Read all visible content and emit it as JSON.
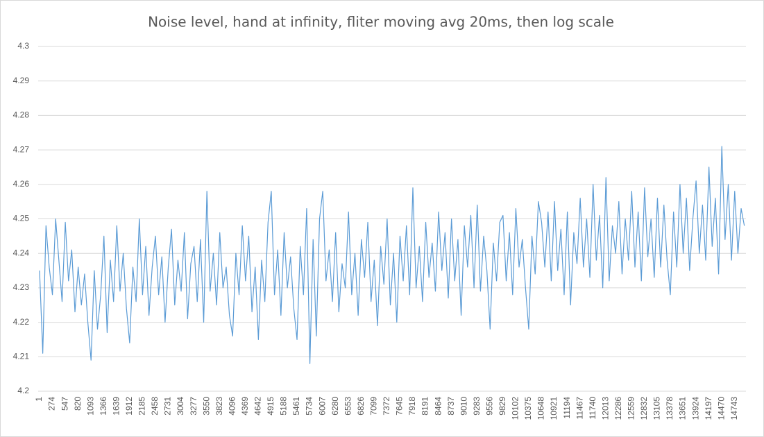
{
  "chart_data": {
    "type": "line",
    "title": "Noise level, hand at infinity, fliter moving avg 20ms, then log scale",
    "categories": [
      "1",
      null,
      null,
      null,
      "274",
      null,
      null,
      null,
      "547",
      null,
      null,
      null,
      "820",
      null,
      null,
      null,
      "1093",
      null,
      null,
      null,
      "1366",
      null,
      null,
      null,
      "1639",
      null,
      null,
      null,
      "1912",
      null,
      null,
      null,
      "2185",
      null,
      null,
      null,
      "2458",
      null,
      null,
      null,
      "2731",
      null,
      null,
      null,
      "3004",
      null,
      null,
      null,
      "3277",
      null,
      null,
      null,
      "3550",
      null,
      null,
      null,
      "3823",
      null,
      null,
      null,
      "4096",
      null,
      null,
      null,
      "4369",
      null,
      null,
      null,
      "4642",
      null,
      null,
      null,
      "4915",
      null,
      null,
      null,
      "5188",
      null,
      null,
      null,
      "5461",
      null,
      null,
      null,
      "5734",
      null,
      null,
      null,
      "6007",
      null,
      null,
      null,
      "6280",
      null,
      null,
      null,
      "6553",
      null,
      null,
      null,
      "6826",
      null,
      null,
      null,
      "7099",
      null,
      null,
      null,
      "7372",
      null,
      null,
      null,
      "7645",
      null,
      null,
      null,
      "7918",
      null,
      null,
      null,
      "8191",
      null,
      null,
      null,
      "8464",
      null,
      null,
      null,
      "8737",
      null,
      null,
      null,
      "9010",
      null,
      null,
      null,
      "9283",
      null,
      null,
      null,
      "9556",
      null,
      null,
      null,
      "9829",
      null,
      null,
      null,
      "10102",
      null,
      null,
      null,
      "10375",
      null,
      null,
      null,
      "10648",
      null,
      null,
      null,
      "10921",
      null,
      null,
      null,
      "11194",
      null,
      null,
      null,
      "11467",
      null,
      null,
      null,
      "11740",
      null,
      null,
      null,
      "12013",
      null,
      null,
      null,
      "12286",
      null,
      null,
      null,
      "12559",
      null,
      null,
      null,
      "12832",
      null,
      null,
      null,
      "13105",
      null,
      null,
      null,
      "13378",
      null,
      null,
      null,
      "13651",
      null,
      null,
      null,
      "13924",
      null,
      null,
      null,
      "14197",
      null,
      null,
      null,
      "14470",
      null,
      null,
      null,
      "14743",
      null,
      null,
      null
    ],
    "values": [
      4.235,
      4.211,
      4.248,
      4.236,
      4.228,
      4.25,
      4.238,
      4.226,
      4.249,
      4.232,
      4.241,
      4.223,
      4.236,
      4.225,
      4.234,
      4.22,
      4.209,
      4.235,
      4.218,
      4.228,
      4.245,
      4.217,
      4.238,
      4.226,
      4.248,
      4.229,
      4.24,
      4.224,
      4.214,
      4.236,
      4.226,
      4.25,
      4.228,
      4.242,
      4.222,
      4.236,
      4.245,
      4.228,
      4.239,
      4.22,
      4.236,
      4.247,
      4.225,
      4.238,
      4.229,
      4.246,
      4.221,
      4.237,
      4.242,
      4.226,
      4.244,
      4.22,
      4.258,
      4.229,
      4.24,
      4.225,
      4.246,
      4.23,
      4.236,
      4.222,
      4.216,
      4.24,
      4.228,
      4.248,
      4.232,
      4.245,
      4.223,
      4.236,
      4.215,
      4.238,
      4.226,
      4.249,
      4.258,
      4.228,
      4.241,
      4.222,
      4.246,
      4.23,
      4.239,
      4.224,
      4.215,
      4.242,
      4.228,
      4.253,
      4.208,
      4.244,
      4.216,
      4.25,
      4.258,
      4.232,
      4.241,
      4.226,
      4.246,
      4.223,
      4.237,
      4.23,
      4.252,
      4.228,
      4.24,
      4.222,
      4.244,
      4.233,
      4.249,
      4.226,
      4.238,
      4.219,
      4.242,
      4.231,
      4.25,
      4.225,
      4.24,
      4.22,
      4.245,
      4.232,
      4.248,
      4.228,
      4.259,
      4.23,
      4.242,
      4.226,
      4.249,
      4.233,
      4.243,
      4.229,
      4.252,
      4.235,
      4.246,
      4.227,
      4.25,
      4.232,
      4.244,
      4.222,
      4.248,
      4.236,
      4.251,
      4.23,
      4.254,
      4.229,
      4.245,
      4.235,
      4.218,
      4.243,
      4.232,
      4.249,
      4.251,
      4.232,
      4.246,
      4.228,
      4.253,
      4.236,
      4.244,
      4.23,
      4.218,
      4.245,
      4.234,
      4.255,
      4.249,
      4.236,
      4.252,
      4.232,
      4.255,
      4.235,
      4.247,
      4.228,
      4.252,
      4.225,
      4.246,
      4.237,
      4.256,
      4.236,
      4.25,
      4.233,
      4.26,
      4.238,
      4.251,
      4.23,
      4.262,
      4.232,
      4.248,
      4.24,
      4.255,
      4.234,
      4.25,
      4.238,
      4.258,
      4.236,
      4.252,
      4.232,
      4.259,
      4.239,
      4.25,
      4.233,
      4.256,
      4.236,
      4.254,
      4.238,
      4.228,
      4.252,
      4.236,
      4.26,
      4.24,
      4.256,
      4.235,
      4.25,
      4.261,
      4.24,
      4.254,
      4.238,
      4.265,
      4.242,
      4.256,
      4.234,
      4.271,
      4.244,
      4.26,
      4.238,
      4.258,
      4.24,
      4.253,
      4.248
    ],
    "color": "#5b9bd5",
    "ylim": [
      4.2,
      4.3
    ],
    "yticks": [
      4.2,
      4.21,
      4.22,
      4.23,
      4.24,
      4.25,
      4.26,
      4.27,
      4.28,
      4.29,
      4.3
    ],
    "grid": true
  }
}
